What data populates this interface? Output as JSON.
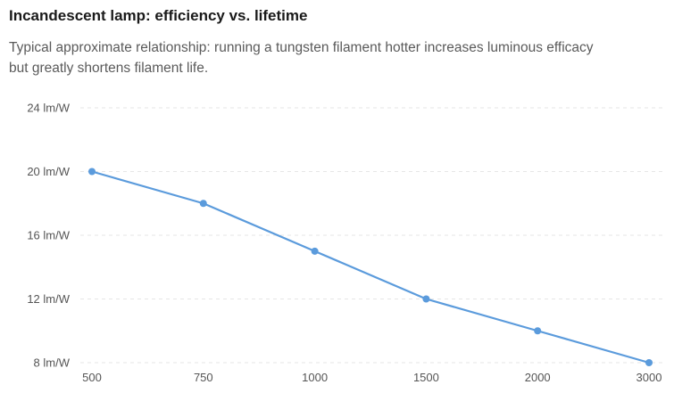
{
  "chart_data": {
    "type": "line",
    "title": "Incandescent lamp: efficiency vs. lifetime",
    "subtitle": "Typical approximate relationship: running a tungsten filament hotter increases luminous efficacy but greatly shortens filament life.",
    "x": [
      500,
      750,
      1000,
      1500,
      2000,
      3000
    ],
    "x_tick_labels": [
      "500",
      "750",
      "1000",
      "1500",
      "2000",
      "3000"
    ],
    "x_scale": "categorical",
    "series": [
      {
        "values": [
          20,
          18,
          15,
          12,
          10,
          8
        ],
        "color": "#5b9bdc"
      }
    ],
    "y_ticks": [
      8,
      12,
      16,
      20,
      24
    ],
    "y_tick_labels": [
      "8 lm/W",
      "12 lm/W",
      "16 lm/W",
      "20 lm/W",
      "24 lm/W"
    ],
    "ylim": [
      8,
      24
    ],
    "grid": true,
    "legend": "none"
  }
}
